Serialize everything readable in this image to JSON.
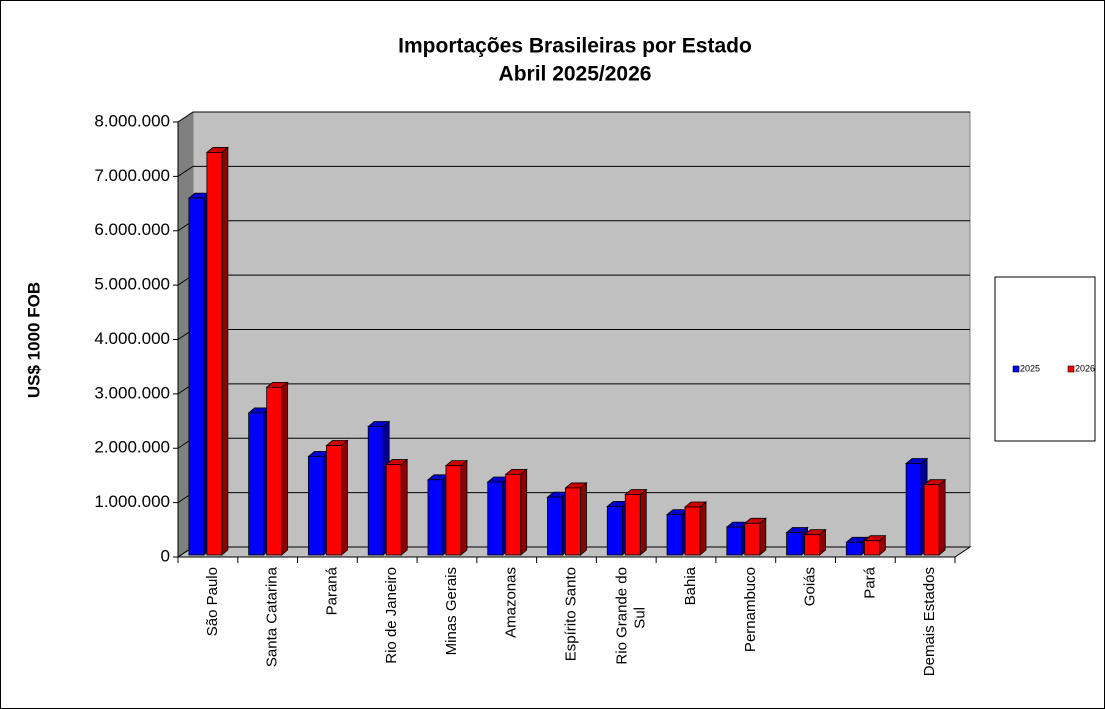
{
  "chart_data": {
    "type": "bar3d",
    "title": "Importações Brasileiras por Estado",
    "subtitle": "Abril 2025/2026",
    "y_label": "US$ 1000 FOB",
    "categories": [
      "São Paulo",
      "Santa Catarina",
      "Paraná",
      "Rio de Janeiro",
      "Minas Gerais",
      "Amazonas",
      "Espírito Santo",
      "Rio Grande do Sul",
      "Bahia",
      "Pernambuco",
      "Goiás",
      "Pará",
      "Demais Estados"
    ],
    "series": [
      {
        "name": "2025",
        "color": "#0000ff",
        "values": [
          6600000,
          2650000,
          1850000,
          2400000,
          1420000,
          1380000,
          1100000,
          930000,
          780000,
          550000,
          450000,
          270000,
          1720000
        ]
      },
      {
        "name": "2026",
        "color": "#ff0000",
        "values": [
          7440000,
          3120000,
          2050000,
          1700000,
          1680000,
          1520000,
          1270000,
          1150000,
          920000,
          620000,
          410000,
          300000,
          1330000
        ]
      }
    ],
    "ylim": [
      0,
      8000000
    ],
    "yticks": [
      0,
      {
        "value": 1000000,
        "label": "1.000.000"
      },
      {
        "value": 2000000,
        "label": "2.000.000"
      },
      {
        "value": 3000000,
        "label": "3.000.000"
      },
      {
        "value": 4000000,
        "label": "4.000.000"
      },
      {
        "value": 5000000,
        "label": "5.000.000"
      },
      {
        "value": 6000000,
        "label": "6.000.000"
      },
      {
        "value": 7000000,
        "label": "7.000.000"
      },
      {
        "value": 8000000,
        "label": "8.000.000"
      }
    ],
    "grid": true,
    "legend": "right"
  }
}
